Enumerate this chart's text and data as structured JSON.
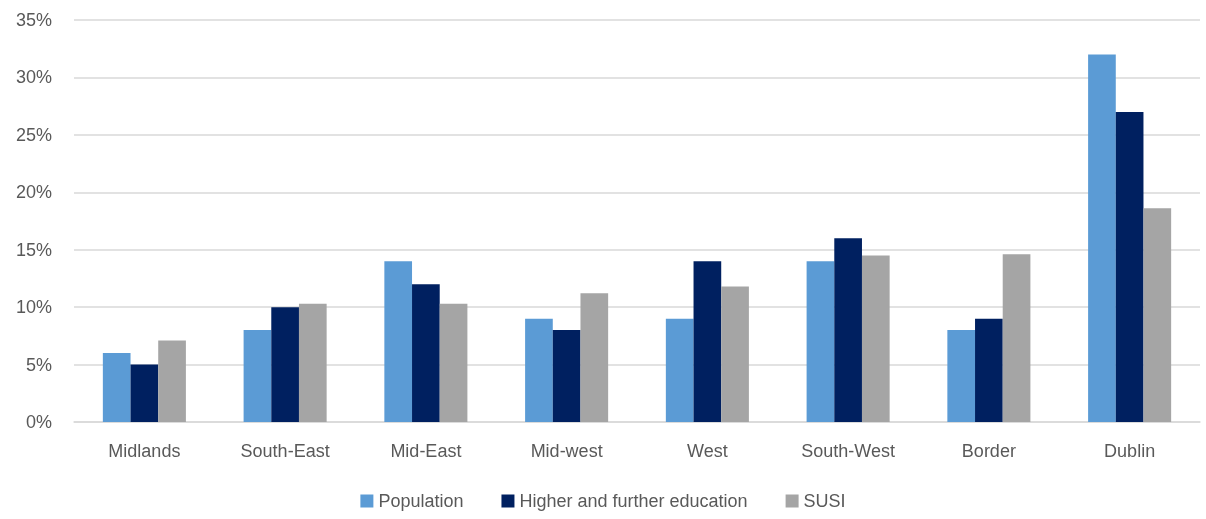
{
  "chart_data": {
    "type": "bar",
    "categories": [
      "Midlands",
      "South-East",
      "Mid-East",
      "Mid-west",
      "West",
      "South-West",
      "Border",
      "Dublin"
    ],
    "series": [
      {
        "name": "Population",
        "color": "#5b9bd5",
        "values": [
          6,
          8,
          14,
          9,
          9,
          14,
          8,
          32
        ]
      },
      {
        "name": "Higher and further education",
        "color": "#002060",
        "values": [
          5,
          10,
          12,
          8,
          14,
          16,
          9,
          27
        ]
      },
      {
        "name": "SUSI",
        "color": "#a5a5a5",
        "values": [
          7.1,
          10.3,
          10.3,
          11.2,
          11.8,
          14.5,
          14.6,
          18.6
        ]
      }
    ],
    "ylim": [
      0,
      35
    ],
    "yticks": [
      {
        "value": 0,
        "label": "0%"
      },
      {
        "value": 5,
        "label": "5%"
      },
      {
        "value": 10,
        "label": "10%"
      },
      {
        "value": 15,
        "label": "15%"
      },
      {
        "value": 20,
        "label": "20%"
      },
      {
        "value": 25,
        "label": "25%"
      },
      {
        "value": 30,
        "label": "30%"
      },
      {
        "value": 35,
        "label": "35%"
      }
    ],
    "grid": "y",
    "legend": "bottom"
  }
}
